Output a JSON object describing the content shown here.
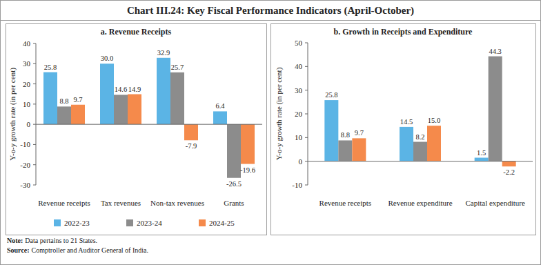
{
  "title": "Chart III.24: Key Fiscal Performance Indicators (April-October)",
  "note": {
    "label": "Note:",
    "text": "Data pertains to 21 States."
  },
  "source": {
    "label": "Source:",
    "text": "Comptroller and Auditor General of India."
  },
  "chart_data": [
    {
      "type": "bar",
      "title": "a. Revenue Receipts",
      "y_label": "Y-o-y growth rate (in per cent)",
      "categories": [
        "Revenue receipts",
        "Tax revenues",
        "Non-tax revenues",
        "Grants"
      ],
      "series": [
        {
          "name": "2022-23",
          "color": "#5bb4e5",
          "values": [
            25.8,
            30.0,
            32.9,
            6.4
          ],
          "value_labels": [
            "25.8",
            "30.0",
            "32.9",
            "6.4"
          ]
        },
        {
          "name": "2023-24",
          "color": "#8c8c8c",
          "values": [
            8.8,
            14.6,
            25.7,
            -26.5
          ],
          "value_labels": [
            "8.8",
            "14.6",
            "25.7",
            "-26.5"
          ]
        },
        {
          "name": "2024-25",
          "color": "#f58a4b",
          "values": [
            9.7,
            14.9,
            -7.9,
            -19.6
          ],
          "value_labels": [
            "9.7",
            "14.9",
            "-7.9",
            "-19.6"
          ]
        }
      ],
      "ylim": [
        -30,
        40
      ],
      "yticks": [
        -30,
        -20,
        -10,
        0,
        10,
        20,
        30,
        40
      ],
      "grid": false,
      "data_labels": true,
      "legend": "bottom-left"
    },
    {
      "type": "bar",
      "title": "b. Growth in Receipts and Expenditure",
      "y_label": "Y-o-y growth rate (in per cent)",
      "categories": [
        "Revenue receipts",
        "Revenue expenditure",
        "Capital expenditure"
      ],
      "series": [
        {
          "name": "2022-23",
          "color": "#5bb4e5",
          "values": [
            25.8,
            14.5,
            1.5
          ],
          "value_labels": [
            "25.8",
            "14.5",
            "1.5"
          ]
        },
        {
          "name": "2023-24",
          "color": "#8c8c8c",
          "values": [
            8.8,
            8.2,
            44.3
          ],
          "value_labels": [
            "8.8",
            "8.2",
            "44.3"
          ]
        },
        {
          "name": "2024-25",
          "color": "#f58a4b",
          "values": [
            9.7,
            15.0,
            -2.2
          ],
          "value_labels": [
            "9.7",
            "15.0",
            "-2.2"
          ]
        }
      ],
      "ylim": [
        -10,
        50
      ],
      "yticks": [
        -10,
        0,
        10,
        20,
        30,
        40,
        50
      ],
      "grid": false,
      "data_labels": true
    }
  ]
}
